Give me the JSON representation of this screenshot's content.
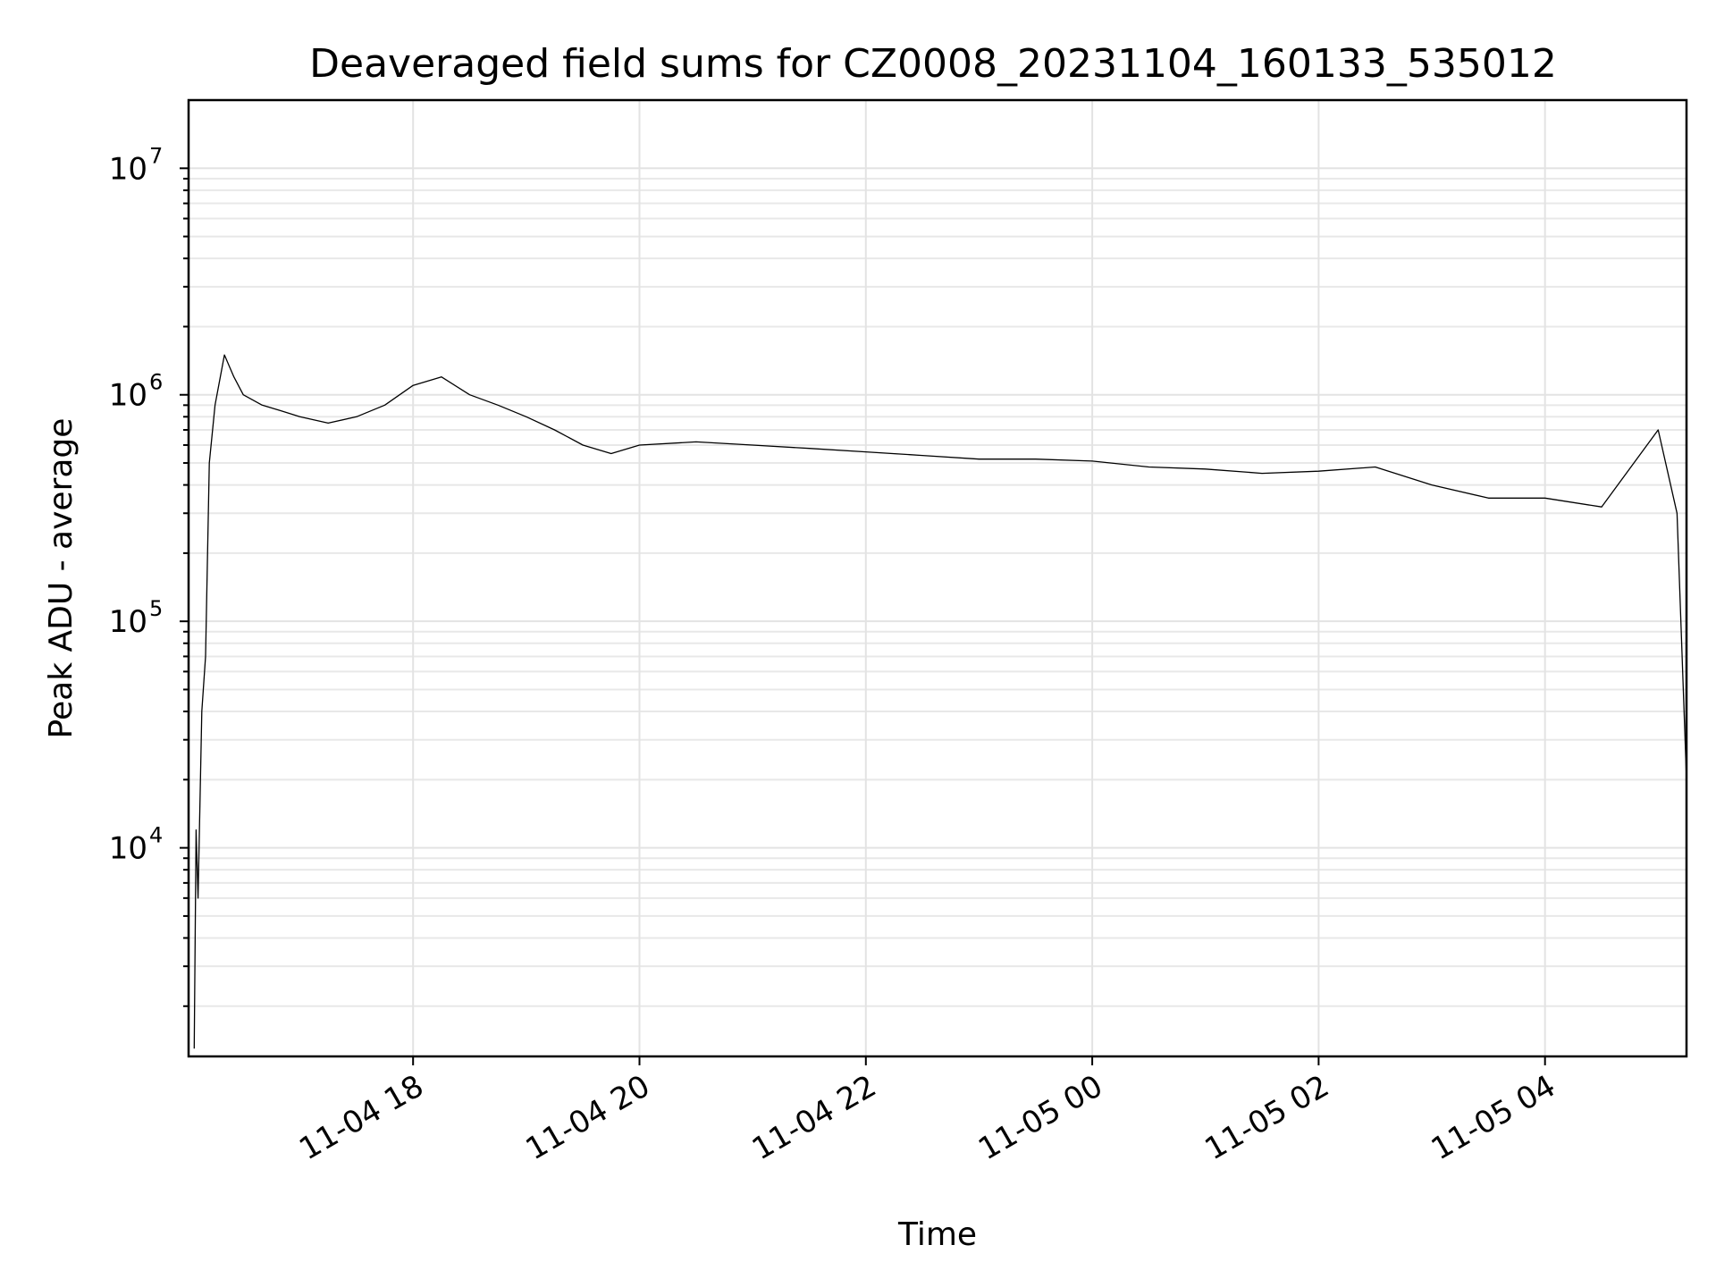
{
  "chart_data": {
    "type": "line",
    "title": "Deaveraged field sums for CZ0008_20231104_160133_535012",
    "xlabel": "Time",
    "ylabel": "Peak ADU - average",
    "yscale": "log",
    "ylim": [
      1200,
      20000000
    ],
    "xlim": [
      "2023-11-04 16:01",
      "2023-11-05 05:15"
    ],
    "x_ticks": [
      {
        "value": "2023-11-04 18:00",
        "label": "11-04 18"
      },
      {
        "value": "2023-11-04 20:00",
        "label": "11-04 20"
      },
      {
        "value": "2023-11-04 22:00",
        "label": "11-04 22"
      },
      {
        "value": "2023-11-05 00:00",
        "label": "11-05 00"
      },
      {
        "value": "2023-11-05 02:00",
        "label": "11-05 02"
      },
      {
        "value": "2023-11-05 04:00",
        "label": "11-05 04"
      }
    ],
    "y_ticks": [
      {
        "value": 10000,
        "base": "10",
        "exp": "4"
      },
      {
        "value": 100000,
        "base": "10",
        "exp": "5"
      },
      {
        "value": 1000000,
        "base": "10",
        "exp": "6"
      },
      {
        "value": 10000000,
        "base": "10",
        "exp": "7"
      }
    ],
    "grid": true,
    "line_color": "#000000",
    "series": [
      {
        "x": [
          "2023-11-04 16:04",
          "2023-11-04 16:05",
          "2023-11-04 16:06",
          "2023-11-04 16:08",
          "2023-11-04 16:10",
          "2023-11-04 16:12",
          "2023-11-04 16:15",
          "2023-11-04 16:20",
          "2023-11-04 16:25",
          "2023-11-04 16:30",
          "2023-11-04 16:40",
          "2023-11-04 16:50",
          "2023-11-04 17:00",
          "2023-11-04 17:15",
          "2023-11-04 17:30",
          "2023-11-04 17:45",
          "2023-11-04 18:00",
          "2023-11-04 18:15",
          "2023-11-04 18:30",
          "2023-11-04 18:45",
          "2023-11-04 19:00",
          "2023-11-04 19:15",
          "2023-11-04 19:30",
          "2023-11-04 19:45",
          "2023-11-04 20:00",
          "2023-11-04 20:30",
          "2023-11-04 21:00",
          "2023-11-04 21:30",
          "2023-11-04 22:00",
          "2023-11-04 22:30",
          "2023-11-04 23:00",
          "2023-11-04 23:30",
          "2023-11-05 00:00",
          "2023-11-05 00:30",
          "2023-11-05 01:00",
          "2023-11-05 01:30",
          "2023-11-05 02:00",
          "2023-11-05 02:30",
          "2023-11-05 03:00",
          "2023-11-05 03:30",
          "2023-11-05 04:00",
          "2023-11-05 04:30",
          "2023-11-05 05:00",
          "2023-11-05 05:10",
          "2023-11-05 05:15"
        ],
        "y": [
          1300,
          12000,
          6000,
          40000,
          70000,
          500000,
          900000,
          1500000,
          1200000,
          1000000,
          900000,
          850000,
          800000,
          750000,
          800000,
          900000,
          1100000,
          1200000,
          1000000,
          900000,
          800000,
          700000,
          600000,
          550000,
          600000,
          620000,
          600000,
          580000,
          560000,
          540000,
          520000,
          520000,
          510000,
          480000,
          470000,
          450000,
          460000,
          480000,
          400000,
          350000,
          350000,
          320000,
          700000,
          300000,
          20000
        ]
      }
    ]
  }
}
